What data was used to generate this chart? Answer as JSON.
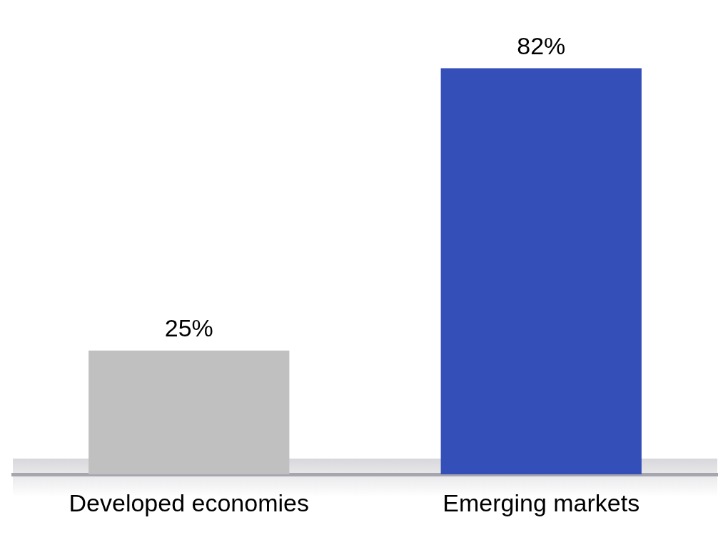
{
  "chart_data": {
    "type": "bar",
    "categories": [
      "Developed economies",
      "Emerging markets"
    ],
    "values": [
      25,
      82
    ],
    "colors": [
      "#c0c0c0",
      "#344fb8"
    ],
    "value_labels": [
      "25%",
      "82%"
    ],
    "tick_labels": "x",
    "grid": false,
    "legend": false
  }
}
